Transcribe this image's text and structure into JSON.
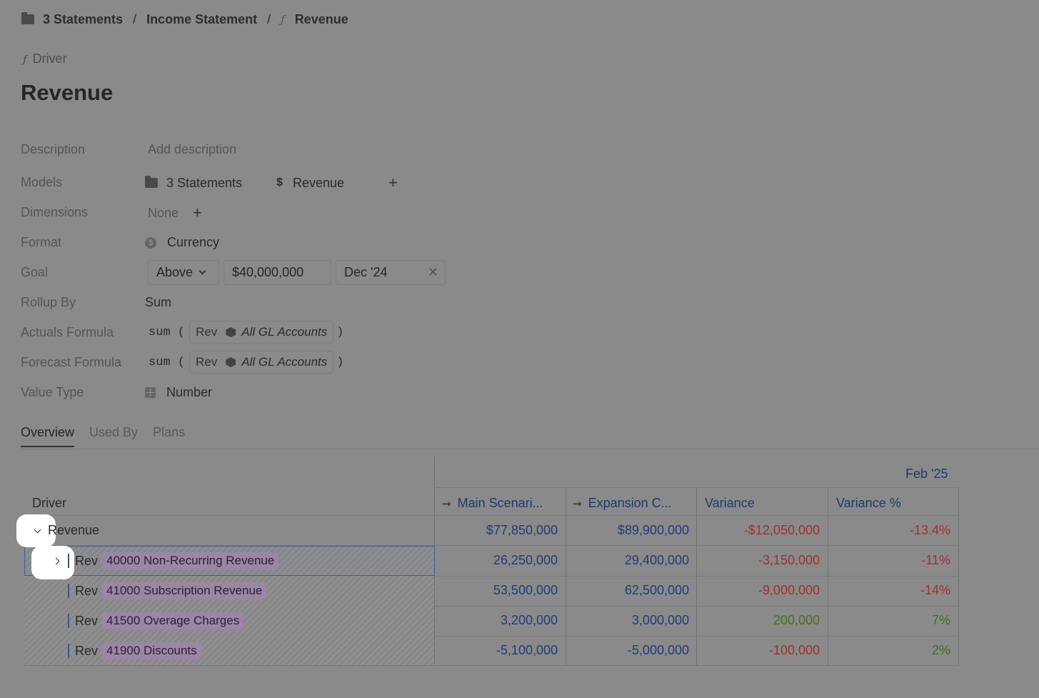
{
  "breadcrumb": {
    "items": [
      {
        "label": "3 Statements",
        "icon": "folder-icon"
      },
      {
        "label": "Income Statement"
      },
      {
        "label": "Revenue",
        "icon": "function-icon"
      }
    ],
    "separator": "/"
  },
  "kind": {
    "icon": "function-icon",
    "label": "Driver"
  },
  "title": "Revenue",
  "properties": {
    "description": {
      "label": "Description",
      "placeholder": "Add description"
    },
    "models": {
      "label": "Models",
      "items": [
        {
          "label": "3 Statements",
          "icon": "folder-icon"
        },
        {
          "label": "Revenue",
          "icon": "dollar-icon",
          "symbol": "$"
        }
      ],
      "add": "+"
    },
    "dimensions": {
      "label": "Dimensions",
      "value": "None",
      "add": "+"
    },
    "format": {
      "label": "Format",
      "value": "Currency",
      "icon": "currency-icon",
      "icon_glyph": "$"
    },
    "goal": {
      "label": "Goal",
      "direction": "Above",
      "amount": "$40,000,000",
      "date": "Dec '24",
      "clear": "✕"
    },
    "rollup": {
      "label": "Rollup By",
      "value": "Sum"
    },
    "actuals_formula": {
      "label": "Actuals Formula",
      "fn": "sum (",
      "ref": "Rev",
      "dimension": "All GL Accounts",
      "close": ")"
    },
    "forecast_formula": {
      "label": "Forecast Formula",
      "fn": "sum (",
      "ref": "Rev",
      "dimension": "All GL Accounts",
      "close": ")"
    },
    "value_type": {
      "label": "Value Type",
      "value": "Number",
      "icon": "number-icon"
    }
  },
  "tabs": [
    {
      "label": "Overview",
      "active": true
    },
    {
      "label": "Used By",
      "active": false
    },
    {
      "label": "Plans",
      "active": false
    }
  ],
  "table": {
    "period": "Feb '25",
    "driver_header": "Driver",
    "columns": [
      {
        "label": "Main Scenari...",
        "icon": "scenario-icon"
      },
      {
        "label": "Expansion C...",
        "icon": "scenario-icon"
      },
      {
        "label": "Variance"
      },
      {
        "label": "Variance %"
      }
    ],
    "rows": [
      {
        "label": "Revenue",
        "prefix": "",
        "tag": "",
        "values": [
          "$77,850,000",
          "$89,900,000",
          "-$12,050,000",
          "-13.4%"
        ],
        "variance_sign": "neg"
      },
      {
        "label": "",
        "prefix": "Rev",
        "tag": "40000 Non-Recurring Revenue",
        "values": [
          "26,250,000",
          "29,400,000",
          "-3,150,000",
          "-11%"
        ],
        "variance_sign": "neg"
      },
      {
        "label": "",
        "prefix": "Rev",
        "tag": "41000 Subscription Revenue",
        "values": [
          "53,500,000",
          "62,500,000",
          "-9,000,000",
          "-14%"
        ],
        "variance_sign": "neg"
      },
      {
        "label": "",
        "prefix": "Rev",
        "tag": "41500 Overage Charges",
        "values": [
          "3,200,000",
          "3,000,000",
          "200,000",
          "7%"
        ],
        "variance_sign": "pos"
      },
      {
        "label": "",
        "prefix": "Rev",
        "tag": "41900 Discounts",
        "values": [
          "-5,100,000",
          "-5,000,000",
          "-100,000",
          "2%"
        ],
        "variance_sign": "mixed"
      }
    ]
  },
  "colors": {
    "background": "#8a8a8a",
    "number_blue": "#1e3d7a",
    "negative_red": "#a3302b",
    "positive_green": "#4a6e1f",
    "tag_purple": "#9a86a6"
  }
}
